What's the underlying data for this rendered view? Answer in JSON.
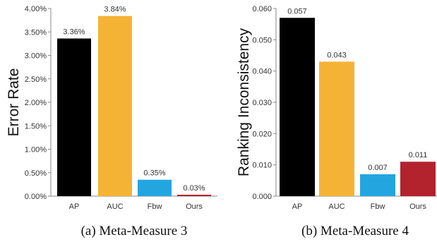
{
  "chart_data": [
    {
      "type": "bar",
      "caption": "(a) Meta-Measure 3",
      "ylabel": "Error Rate",
      "categories": [
        "AP",
        "AUC",
        "Fbw",
        "Ours"
      ],
      "values": [
        3.36,
        3.84,
        0.35,
        0.03
      ],
      "value_labels": [
        "3.36%",
        "3.84%",
        "0.35%",
        "0.03%"
      ],
      "ylim": [
        0,
        4.0
      ],
      "yticks": [
        0,
        0.5,
        1.0,
        1.5,
        2.0,
        2.5,
        3.0,
        3.5,
        4.0
      ],
      "ytick_labels": [
        "0.00%",
        "0.50%",
        "1.00%",
        "1.50%",
        "2.00%",
        "2.50%",
        "3.00%",
        "3.50%",
        "4.00%"
      ],
      "colors": [
        "#000000",
        "#f5b335",
        "#23a6df",
        "#b3232d"
      ],
      "grid": false,
      "legend": "none"
    },
    {
      "type": "bar",
      "caption": "(b) Meta-Measure 4",
      "ylabel": "Ranking Inconsistency",
      "categories": [
        "AP",
        "AUC",
        "Fbw",
        "Ours"
      ],
      "values": [
        0.057,
        0.043,
        0.007,
        0.011
      ],
      "value_labels": [
        "0.057",
        "0.043",
        "0.007",
        "0.011"
      ],
      "ylim": [
        0,
        0.06
      ],
      "yticks": [
        0,
        0.01,
        0.02,
        0.03,
        0.04,
        0.05,
        0.06
      ],
      "ytick_labels": [
        "0.000",
        "0.010",
        "0.020",
        "0.030",
        "0.040",
        "0.050",
        "0.060"
      ],
      "colors": [
        "#000000",
        "#f5b335",
        "#23a6df",
        "#b3232d"
      ],
      "grid": false,
      "legend": "none"
    }
  ]
}
